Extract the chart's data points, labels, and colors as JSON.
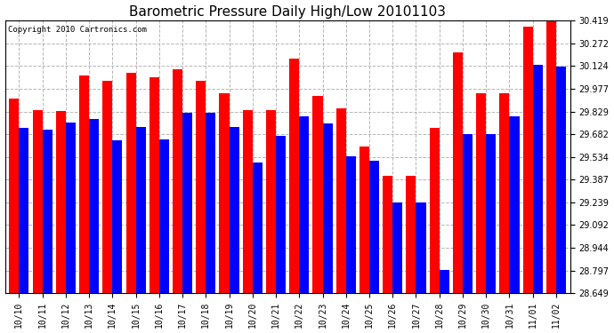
{
  "title": "Barometric Pressure Daily High/Low 20101103",
  "copyright": "Copyright 2010 Cartronics.com",
  "dates": [
    "10/10",
    "10/11",
    "10/12",
    "10/13",
    "10/14",
    "10/15",
    "10/16",
    "10/17",
    "10/18",
    "10/19",
    "10/20",
    "10/21",
    "10/22",
    "10/23",
    "10/24",
    "10/25",
    "10/26",
    "10/27",
    "10/28",
    "10/29",
    "10/30",
    "10/31",
    "11/01",
    "11/02"
  ],
  "highs": [
    29.91,
    29.84,
    29.83,
    30.06,
    30.03,
    30.08,
    30.05,
    30.1,
    30.03,
    29.95,
    29.84,
    29.84,
    30.17,
    29.93,
    29.85,
    29.6,
    29.41,
    29.41,
    29.72,
    30.21,
    29.95,
    29.95,
    30.38,
    30.42
  ],
  "lows": [
    29.72,
    29.71,
    29.76,
    29.78,
    29.64,
    29.73,
    29.65,
    29.82,
    29.82,
    29.73,
    29.5,
    29.67,
    29.8,
    29.75,
    29.54,
    29.51,
    29.24,
    29.24,
    28.8,
    29.68,
    29.68,
    29.8,
    30.13,
    30.12
  ],
  "ymin": 28.649,
  "ymax": 30.419,
  "yticks": [
    28.649,
    28.797,
    28.944,
    29.092,
    29.239,
    29.387,
    29.534,
    29.682,
    29.829,
    29.977,
    30.124,
    30.272,
    30.419
  ],
  "high_color": "#FF0000",
  "low_color": "#0000FF",
  "bg_color": "#FFFFFF",
  "grid_color": "#AAAAAA",
  "title_fontsize": 11,
  "copyright_fontsize": 6.5,
  "tick_fontsize": 7,
  "bar_width": 0.42
}
